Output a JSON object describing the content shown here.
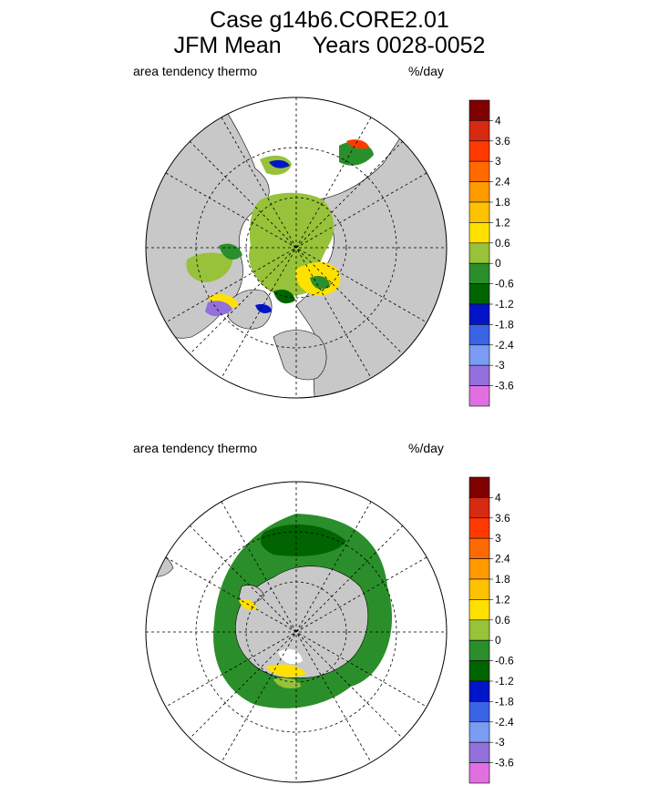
{
  "title": {
    "line1": "Case g14b6.CORE2.01",
    "line2": "JFM Mean     Years 0028-0052"
  },
  "colors": {
    "land": "#c8c8c8",
    "ocean": "#ffffff",
    "levels": [
      "#7f0000",
      "#d62a12",
      "#ff3a00",
      "#ff6a00",
      "#ff9a00",
      "#ffc200",
      "#ffe100",
      "#97c23a",
      "#2a8f2a",
      "#006400",
      "#0015c8",
      "#3a63e6",
      "#7a9cf2",
      "#9370db",
      "#e070e0"
    ]
  },
  "chart_data": [
    {
      "type": "heatmap",
      "projection": "polar stereographic, north pole",
      "label_left": "area tendency thermo",
      "label_right": "%/day",
      "colorbar_ticks": [
        "4",
        "3.6",
        "3",
        "2.4",
        "1.8",
        "1.2",
        "0.6",
        "0",
        "-0.6",
        "-1.2",
        "-1.8",
        "-2.4",
        "-3",
        "-3.6"
      ],
      "grid": true
    },
    {
      "type": "heatmap",
      "projection": "polar stereographic, south pole",
      "label_left": "area tendency thermo",
      "label_right": "%/day",
      "colorbar_ticks": [
        "4",
        "3.6",
        "3",
        "2.4",
        "1.8",
        "1.2",
        "0.6",
        "0",
        "-0.6",
        "-1.2",
        "-1.8",
        "-2.4",
        "-3",
        "-3.6"
      ],
      "grid": true
    }
  ]
}
